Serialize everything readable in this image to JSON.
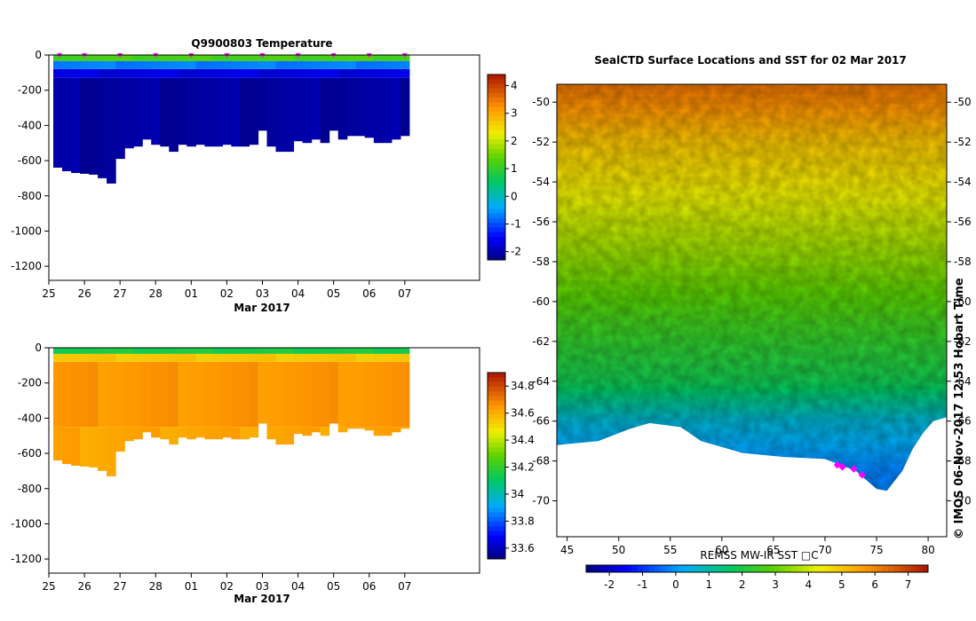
{
  "chart_data": [
    {
      "type": "heatmap",
      "title": "Q9900803  Temperature",
      "xlabel": "Mar 2017",
      "ylabel": "",
      "ylim": [
        -1280,
        0
      ],
      "xlim": [
        25,
        37.1
      ],
      "x_ticks": [
        {
          "v": 25,
          "label": "25"
        },
        {
          "v": 26,
          "label": "26"
        },
        {
          "v": 27,
          "label": "27"
        },
        {
          "v": 28,
          "label": "28"
        },
        {
          "v": 29,
          "label": "01"
        },
        {
          "v": 30,
          "label": "02"
        },
        {
          "v": 31,
          "label": "03"
        },
        {
          "v": 32,
          "label": "04"
        },
        {
          "v": 33,
          "label": "05"
        },
        {
          "v": 34,
          "label": "06"
        },
        {
          "v": 35,
          "label": "07"
        }
      ],
      "y_ticks": [
        0,
        -200,
        -400,
        -600,
        -800,
        -1000,
        -1200
      ],
      "colorbar": {
        "min": -2.3,
        "max": 4.4,
        "ticks": [
          4,
          3,
          2,
          1,
          0,
          -1,
          -2
        ],
        "palette": "rainbow"
      },
      "markers": [
        25.3,
        26,
        27,
        28,
        29,
        30,
        31,
        32,
        33,
        34,
        35
      ],
      "marker_color": "#ff00ff",
      "profile_days": [
        25.25,
        25.5,
        25.75,
        26.0,
        26.25,
        26.5,
        26.75,
        27.0,
        27.25,
        27.5,
        27.75,
        28.0,
        28.25,
        28.5,
        28.75,
        29.0,
        29.25,
        29.5,
        29.75,
        30.0,
        30.25,
        30.5,
        30.75,
        31.0,
        31.25,
        31.5,
        31.75,
        32.0,
        32.25,
        32.5,
        32.75,
        33.0,
        33.25,
        33.5,
        33.75,
        34.0,
        34.25,
        34.5,
        34.75,
        35.0
      ],
      "profile_depths": [
        640,
        660,
        670,
        675,
        680,
        700,
        730,
        590,
        530,
        520,
        480,
        510,
        520,
        550,
        510,
        520,
        510,
        520,
        520,
        510,
        520,
        520,
        510,
        430,
        520,
        550,
        550,
        490,
        500,
        480,
        500,
        430,
        480,
        460,
        460,
        470,
        500,
        500,
        480,
        460
      ],
      "layers": [
        {
          "from": 0,
          "to": 35,
          "value": 1.2
        },
        {
          "from": 35,
          "to": 80,
          "value": -0.7
        },
        {
          "from": 80,
          "to": 130,
          "value": -1.7
        },
        {
          "from": 130,
          "to": 2000,
          "value": -2.1
        }
      ]
    },
    {
      "type": "heatmap",
      "title": "",
      "xlabel": "Mar 2017",
      "ylabel": "",
      "ylim": [
        -1280,
        0
      ],
      "xlim": [
        25,
        37.1
      ],
      "x_ticks": [
        {
          "v": 25,
          "label": "25"
        },
        {
          "v": 26,
          "label": "26"
        },
        {
          "v": 27,
          "label": "27"
        },
        {
          "v": 28,
          "label": "28"
        },
        {
          "v": 29,
          "label": "01"
        },
        {
          "v": 30,
          "label": "02"
        },
        {
          "v": 31,
          "label": "03"
        },
        {
          "v": 32,
          "label": "04"
        },
        {
          "v": 33,
          "label": "05"
        },
        {
          "v": 34,
          "label": "06"
        },
        {
          "v": 35,
          "label": "07"
        }
      ],
      "y_ticks": [
        0,
        -200,
        -400,
        -600,
        -800,
        -1000,
        -1200
      ],
      "colorbar": {
        "min": 33.52,
        "max": 34.9,
        "ticks": [
          34.8,
          34.6,
          34.4,
          34.2,
          34,
          33.8,
          33.6
        ],
        "palette": "rainbow"
      },
      "profile_days": [
        25.25,
        25.5,
        25.75,
        26.0,
        26.25,
        26.5,
        26.75,
        27.0,
        27.25,
        27.5,
        27.75,
        28.0,
        28.25,
        28.5,
        28.75,
        29.0,
        29.25,
        29.5,
        29.75,
        30.0,
        30.25,
        30.5,
        30.75,
        31.0,
        31.25,
        31.5,
        31.75,
        32.0,
        32.25,
        32.5,
        32.75,
        33.0,
        33.25,
        33.5,
        33.75,
        34.0,
        34.25,
        34.5,
        34.75,
        35.0
      ],
      "profile_depths": [
        640,
        660,
        670,
        675,
        680,
        700,
        730,
        590,
        530,
        520,
        480,
        510,
        520,
        550,
        510,
        520,
        510,
        520,
        520,
        510,
        520,
        520,
        510,
        430,
        520,
        550,
        550,
        490,
        500,
        480,
        500,
        430,
        480,
        460,
        460,
        470,
        500,
        500,
        480,
        460
      ],
      "layers": [
        {
          "from": 0,
          "to": 35,
          "value": 34.15
        },
        {
          "from": 35,
          "to": 80,
          "value": 34.55
        },
        {
          "from": 80,
          "to": 450,
          "value": 34.65
        },
        {
          "from": 450,
          "to": 2000,
          "value": 34.62
        }
      ]
    },
    {
      "type": "heatmap",
      "title": "SealCTD Surface Locations and SST for 02 Mar 2017",
      "xlabel": "REMSS MW-IR SST □C",
      "ylabel": "",
      "xlim": [
        44,
        81.8
      ],
      "ylim": [
        -71.8,
        -49.1
      ],
      "x_ticks": [
        45,
        50,
        55,
        60,
        65,
        70,
        75,
        80
      ],
      "y_ticks": [
        -50,
        -52,
        -54,
        -56,
        -58,
        -60,
        -62,
        -64,
        -66,
        -68,
        -70
      ],
      "colorbar": {
        "min": -2.7,
        "max": 7.6,
        "ticks": [
          -2,
          -1,
          0,
          1,
          2,
          3,
          4,
          5,
          6,
          7
        ],
        "palette": "rainbow"
      },
      "sst_gradient": [
        {
          "lat": -49.3,
          "sst": 6.2
        },
        {
          "lat": -52,
          "sst": 5.0
        },
        {
          "lat": -55,
          "sst": 4.2
        },
        {
          "lat": -58,
          "sst": 3.4
        },
        {
          "lat": -61,
          "sst": 2.6
        },
        {
          "lat": -64,
          "sst": 1.9
        },
        {
          "lat": -66,
          "sst": 0.6
        },
        {
          "lat": -68.5,
          "sst": -0.2
        }
      ],
      "land": [
        [
          44,
          -67.2
        ],
        [
          48,
          -67.0
        ],
        [
          51,
          -66.4
        ],
        [
          53,
          -66.1
        ],
        [
          56,
          -66.3
        ],
        [
          58,
          -67.0
        ],
        [
          60,
          -67.3
        ],
        [
          62,
          -67.6
        ],
        [
          66,
          -67.8
        ],
        [
          70,
          -67.9
        ],
        [
          73,
          -68.5
        ],
        [
          75,
          -69.4
        ],
        [
          76,
          -69.5
        ],
        [
          77.5,
          -68.5
        ],
        [
          78.5,
          -67.4
        ],
        [
          79.5,
          -66.6
        ],
        [
          80.5,
          -66.0
        ],
        [
          81.8,
          -65.8
        ],
        [
          81.8,
          -71.8
        ],
        [
          44,
          -71.8
        ]
      ],
      "seal_locations": [
        {
          "lon": 71.2,
          "lat": -68.2
        },
        {
          "lon": 71.7,
          "lat": -68.3
        },
        {
          "lon": 72.8,
          "lat": -68.4
        },
        {
          "lon": 73.6,
          "lat": -68.7
        }
      ],
      "marker_color": "#ff00ff",
      "side_label": "© IMOS 06-Nov-2017 12:53 Hobart Time"
    }
  ]
}
